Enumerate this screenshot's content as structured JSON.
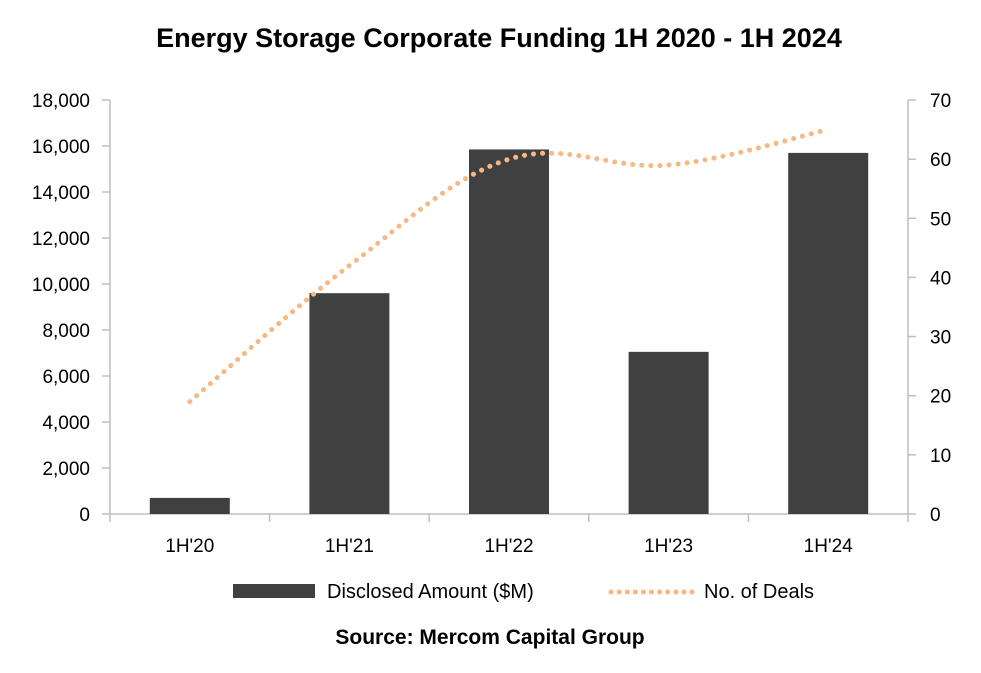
{
  "chart_data": {
    "type": "bar",
    "title": "Energy Storage Corporate Funding 1H 2020 - 1H 2024",
    "source": "Source: Mercom Capital Group",
    "categories": [
      "1H'20",
      "1H'21",
      "1H'22",
      "1H'23",
      "1H'24"
    ],
    "series": [
      {
        "name": "Disclosed Amount ($M)",
        "type": "bar",
        "axis": "left",
        "values": [
          700,
          9600,
          15850,
          7050,
          15700
        ],
        "color": "#404040"
      },
      {
        "name": "No. of Deals",
        "type": "line",
        "axis": "right",
        "style": "dotted",
        "values": [
          19,
          42,
          60,
          59,
          65
        ],
        "color": "#f4b984"
      }
    ],
    "y_left": {
      "min": 0,
      "max": 18000,
      "ticks": [
        "0",
        "2,000",
        "4,000",
        "6,000",
        "8,000",
        "10,000",
        "12,000",
        "14,000",
        "16,000",
        "18,000"
      ]
    },
    "y_right": {
      "min": 0,
      "max": 70,
      "ticks": [
        "0",
        "10",
        "20",
        "30",
        "40",
        "50",
        "60",
        "70"
      ]
    },
    "grid": false,
    "legend_position": "bottom"
  }
}
